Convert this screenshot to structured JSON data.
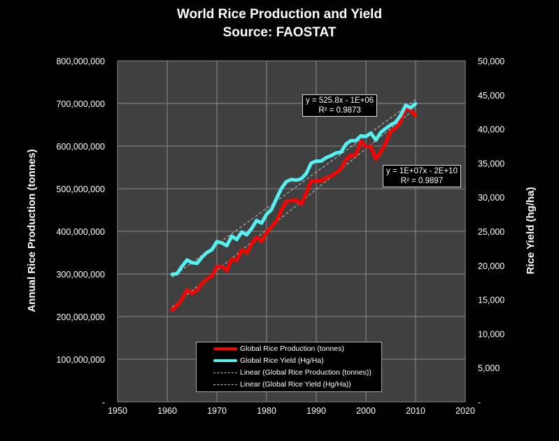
{
  "chart_data": {
    "type": "line",
    "title": "World Rice Production and Yield",
    "subtitle": "Source: FAOSTAT",
    "xlabel": "",
    "ylabel": "Annual Rice Production (tonnes)",
    "y2label": "Rice Yield (hg/ha)",
    "xlim": [
      1950,
      2020
    ],
    "ylim": [
      0,
      800000000
    ],
    "y2lim": [
      0,
      50000
    ],
    "x_ticks": [
      "1950",
      "1960",
      "1970",
      "1980",
      "1990",
      "2000",
      "2010",
      "2020"
    ],
    "y_ticks": [
      "-",
      "100,000,000",
      "200,000,000",
      "300,000,000",
      "400,000,000",
      "500,000,000",
      "600,000,000",
      "700,000,000",
      "800,000,000"
    ],
    "y2_ticks": [
      "-",
      "5,000",
      "10,000",
      "15,000",
      "20,000",
      "25,000",
      "30,000",
      "35,000",
      "40,000",
      "45,000",
      "50,000"
    ],
    "grid": true,
    "x": [
      1961,
      1962,
      1963,
      1964,
      1965,
      1966,
      1967,
      1968,
      1969,
      1970,
      1971,
      1972,
      1973,
      1974,
      1975,
      1976,
      1977,
      1978,
      1979,
      1980,
      1981,
      1982,
      1983,
      1984,
      1985,
      1986,
      1987,
      1988,
      1989,
      1990,
      1991,
      1992,
      1993,
      1994,
      1995,
      1996,
      1997,
      1998,
      1999,
      2000,
      2001,
      2002,
      2003,
      2004,
      2005,
      2006,
      2007,
      2008,
      2009,
      2010
    ],
    "series": [
      {
        "name": "Global Rice Production (tonnes)",
        "axis": "left",
        "color": "#ff0000",
        "values": [
          215600000,
          226400000,
          241600000,
          262400000,
          254100000,
          261400000,
          277400000,
          287700000,
          294800000,
          316300000,
          317600000,
          307700000,
          334600000,
          332000000,
          356700000,
          349300000,
          370600000,
          385600000,
          376400000,
          396900000,
          410400000,
          424400000,
          449500000,
          469900000,
          472400000,
          472600000,
          463800000,
          490100000,
          517600000,
          518600000,
          518400000,
          525600000,
          529100000,
          537100000,
          546600000,
          568500000,
          577600000,
          579200000,
          610900000,
          598700000,
          598800000,
          569700000,
          585800000,
          607400000,
          634400000,
          641200000,
          656900000,
          689000000,
          684000000,
          672000000
        ]
      },
      {
        "name": "Global Rice Yield (Hg/Ha)",
        "axis": "right",
        "color": "#55f0f0",
        "values": [
          18700,
          18800,
          19900,
          20800,
          20400,
          20300,
          21200,
          21900,
          22300,
          23500,
          23300,
          22900,
          24300,
          23800,
          24900,
          24500,
          25400,
          26600,
          26200,
          27500,
          28200,
          29800,
          31300,
          32300,
          32600,
          32500,
          32700,
          33500,
          35000,
          35300,
          35300,
          35800,
          36100,
          36500,
          36600,
          37800,
          38300,
          38300,
          39000,
          38900,
          39400,
          38400,
          39500,
          40100,
          40600,
          41000,
          42000,
          43500,
          43100,
          43700
        ]
      }
    ],
    "trendlines": [
      {
        "name": "Linear (Global Rice Production (tonnes))",
        "of": 0,
        "equation": "y = 1E+07x - 2E+10",
        "r2": "R² = 0.9897"
      },
      {
        "name": "Linear (Global Rice Yield (Hg/Ha))",
        "of": 1,
        "equation": "y = 525.8x - 1E+06",
        "r2": "R² = 0.9873"
      }
    ],
    "legend_position": "bottom-center"
  }
}
